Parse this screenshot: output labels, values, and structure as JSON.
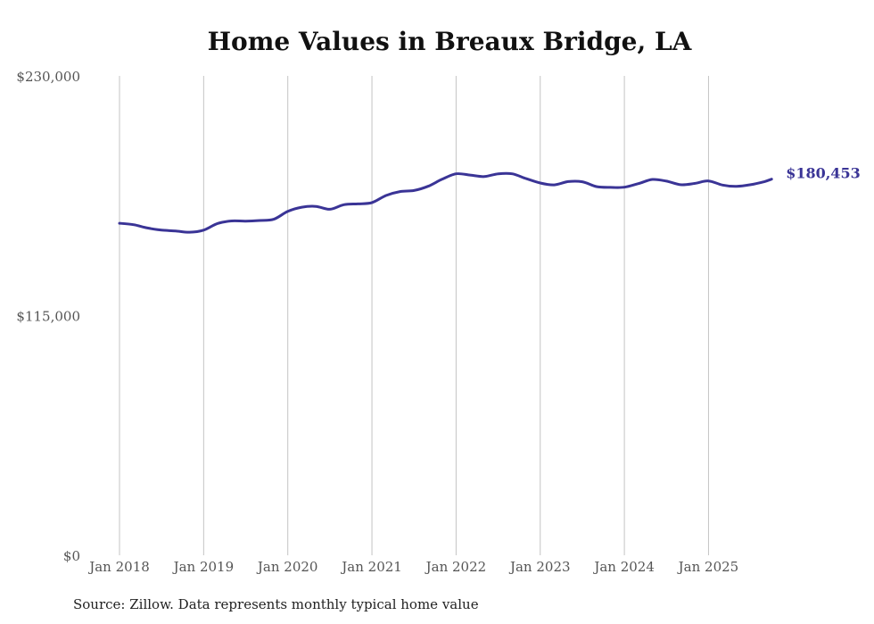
{
  "chart_data": {
    "type": "line",
    "title": "Home Values in Breaux Bridge, LA",
    "xlabel": "",
    "ylabel": "",
    "ylim": [
      0,
      230000
    ],
    "yticks": [
      0,
      115000,
      230000
    ],
    "ytick_labels": [
      "$0",
      "$115,000",
      "$230,000"
    ],
    "xticks": [
      "Jan 2018",
      "Jan 2019",
      "Jan 2020",
      "Jan 2021",
      "Jan 2022",
      "Jan 2023",
      "Jan 2024",
      "Jan 2025"
    ],
    "grid": "vertical",
    "line_color": "#3a3496",
    "end_label": "$180,453",
    "series": [
      {
        "name": "Typical home value",
        "points": [
          [
            "2018-01",
            159300
          ],
          [
            "2018-03",
            158600
          ],
          [
            "2018-05",
            157000
          ],
          [
            "2018-07",
            156000
          ],
          [
            "2018-09",
            155600
          ],
          [
            "2018-11",
            155000
          ],
          [
            "2019-01",
            156000
          ],
          [
            "2019-03",
            159200
          ],
          [
            "2019-05",
            160400
          ],
          [
            "2019-07",
            160300
          ],
          [
            "2019-09",
            160600
          ],
          [
            "2019-11",
            161200
          ],
          [
            "2020-01",
            165000
          ],
          [
            "2020-03",
            167000
          ],
          [
            "2020-05",
            167400
          ],
          [
            "2020-07",
            166000
          ],
          [
            "2020-09",
            168200
          ],
          [
            "2020-11",
            168600
          ],
          [
            "2021-01",
            169200
          ],
          [
            "2021-03",
            172600
          ],
          [
            "2021-05",
            174500
          ],
          [
            "2021-07",
            175000
          ],
          [
            "2021-09",
            177000
          ],
          [
            "2021-11",
            180400
          ],
          [
            "2022-01",
            183000
          ],
          [
            "2022-03",
            182400
          ],
          [
            "2022-05",
            181700
          ],
          [
            "2022-07",
            183000
          ],
          [
            "2022-09",
            183000
          ],
          [
            "2022-11",
            180700
          ],
          [
            "2023-01",
            178600
          ],
          [
            "2023-03",
            177700
          ],
          [
            "2023-05",
            179300
          ],
          [
            "2023-07",
            179200
          ],
          [
            "2023-09",
            176900
          ],
          [
            "2023-11",
            176500
          ],
          [
            "2024-01",
            176600
          ],
          [
            "2024-03",
            178300
          ],
          [
            "2024-05",
            180300
          ],
          [
            "2024-07",
            179500
          ],
          [
            "2024-09",
            177800
          ],
          [
            "2024-11",
            178400
          ],
          [
            "2025-01",
            179600
          ],
          [
            "2025-03",
            177600
          ],
          [
            "2025-05",
            177000
          ],
          [
            "2025-07",
            177800
          ],
          [
            "2025-09",
            179300
          ],
          [
            "2025-10",
            180453
          ]
        ]
      }
    ]
  },
  "footer": {
    "source": "Source: Zillow. Data represents monthly typical home value"
  }
}
